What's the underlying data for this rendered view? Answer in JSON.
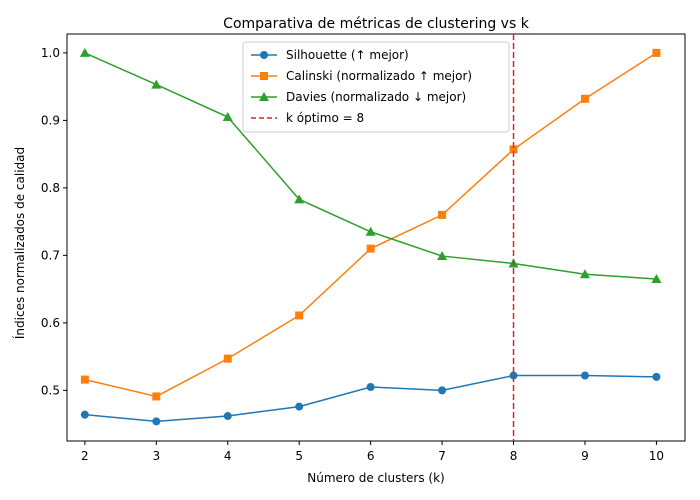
{
  "chart_data": {
    "type": "line",
    "title": "Comparativa de métricas de clustering vs k",
    "xlabel": "Número de clusters (k)",
    "ylabel": "Índices normalizados de calidad",
    "x": [
      2,
      3,
      4,
      5,
      6,
      7,
      8,
      9,
      10
    ],
    "xlim": [
      1.75,
      10.4
    ],
    "ylim": [
      0.425,
      1.028
    ],
    "x_ticks": [
      2,
      3,
      4,
      5,
      6,
      7,
      8,
      9,
      10
    ],
    "y_ticks": [
      0.5,
      0.6,
      0.7,
      0.8,
      0.9,
      1.0
    ],
    "y_tick_labels": [
      "0.5",
      "0.6",
      "0.7",
      "0.8",
      "0.9",
      "1.0"
    ],
    "grid": false,
    "legend_position": "top-center",
    "series": [
      {
        "name": "Silhouette (↑ mejor)",
        "color": "#1f77b4",
        "marker": "circle",
        "values": [
          0.464,
          0.454,
          0.462,
          0.476,
          0.505,
          0.5,
          0.522,
          0.522,
          0.52
        ]
      },
      {
        "name": "Calinski (normalizado ↑ mejor)",
        "color": "#ff7f0e",
        "marker": "square",
        "values": [
          0.516,
          0.491,
          0.547,
          0.611,
          0.71,
          0.76,
          0.857,
          0.932,
          1.0
        ]
      },
      {
        "name": "Davies (normalizado ↓ mejor)",
        "color": "#2ca02c",
        "marker": "triangle",
        "values": [
          1.0,
          0.953,
          0.905,
          0.783,
          0.735,
          0.699,
          0.688,
          0.672,
          0.665
        ]
      }
    ],
    "reference_line": {
      "name": "k óptimo = 8",
      "x": 8,
      "color": "#d62728",
      "style": "dashed"
    }
  }
}
